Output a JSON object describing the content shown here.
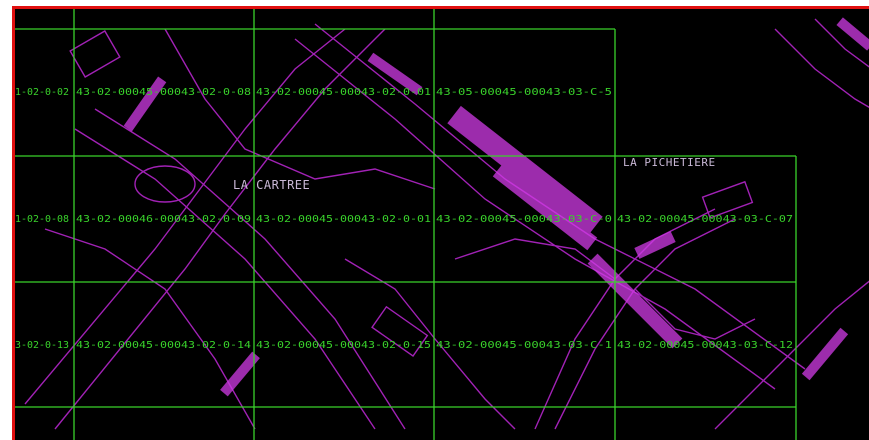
{
  "colors": {
    "background": "#000000",
    "frame_border": "#e01010",
    "grid_line": "#39d12b",
    "grid_text": "#39d12b",
    "cad_lines": "#b326c9",
    "cad_fill": "#d13be6",
    "place_label": "#c9b8d6"
  },
  "place_labels": {
    "cartree": "LA CARTREE",
    "pichetiere": "LA PICHETIERE"
  },
  "rows": [
    {
      "cells": [
        "1-02-0-02",
        "43-02-00045-00043-02-0-08",
        "43-02-00045-00043-02-0-01",
        "43-05-00045-00043-03-C-5"
      ]
    },
    {
      "cells": [
        "1-02-0-08",
        "43-02-00046-00043-02-0-09",
        "43-02-00045-00043-02-0-01",
        "43-02-00045-00043-03-C-0",
        "43-02-00045-00043-03-C-07"
      ]
    },
    {
      "cells": [
        "3-02-0-13",
        "43-02-00045-00043-02-0-14",
        "43-02-00045-00043-02-0-15",
        "43-02-00045-00043-03-C-1",
        "43-02-00045-00043-03-C-12"
      ]
    }
  ]
}
